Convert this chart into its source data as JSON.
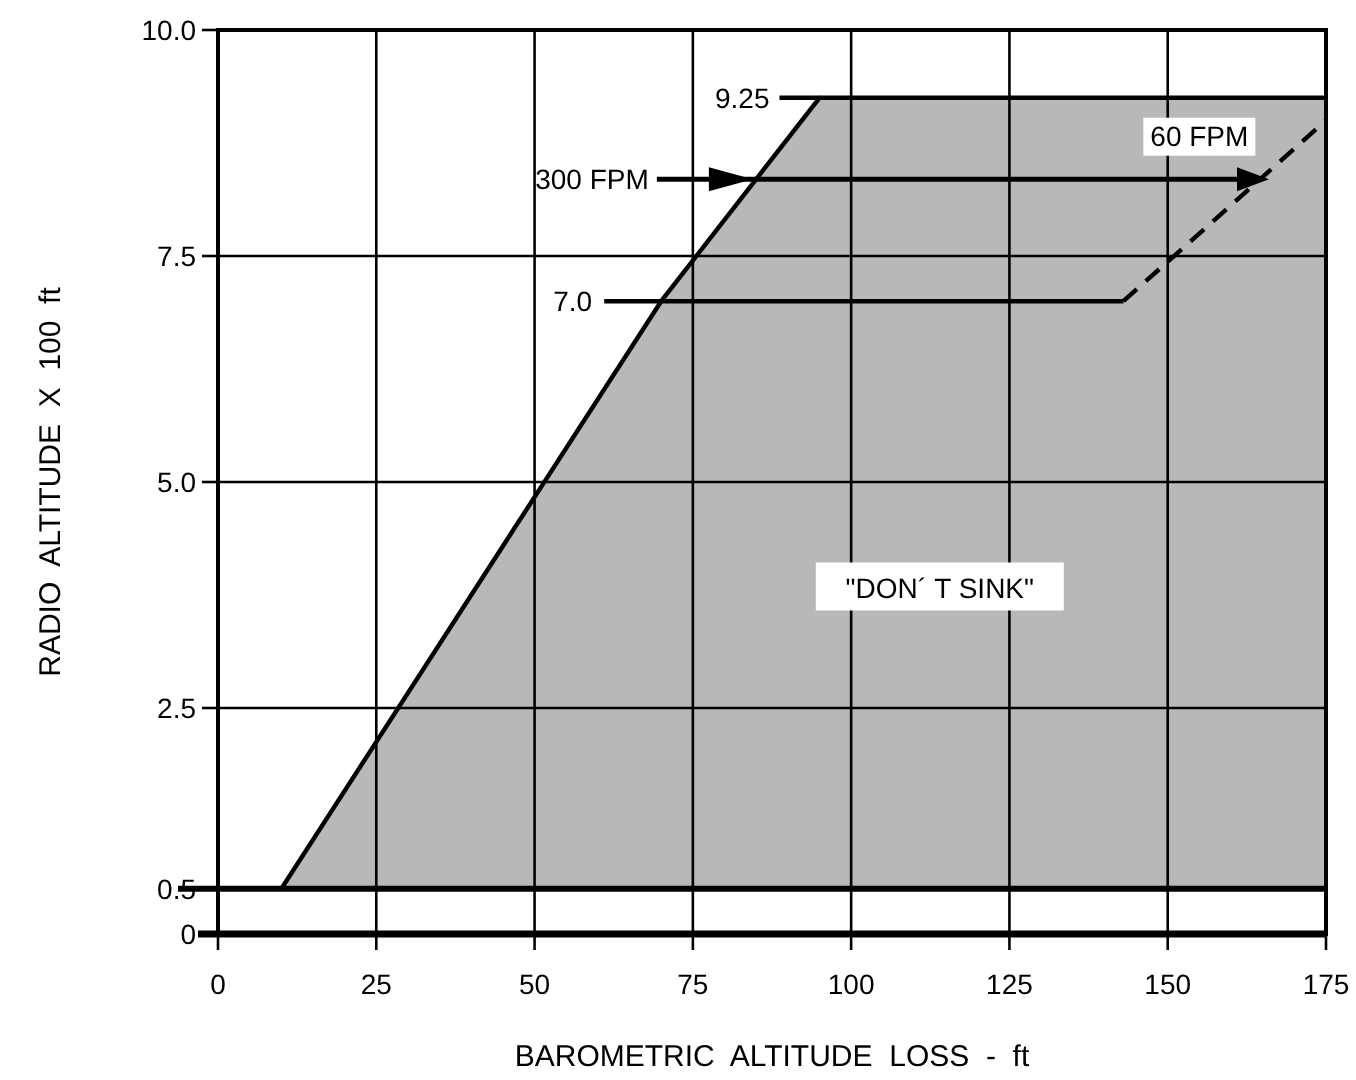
{
  "chart_data": {
    "type": "line",
    "xlabel": "BAROMETRIC  ALTITUDE  LOSS  -  ft",
    "ylabel": "RADIO  ALTITUDE  X  100  ft",
    "xlim": [
      0,
      175
    ],
    "xticks": [
      0,
      25,
      50,
      75,
      100,
      125,
      150,
      175
    ],
    "ylim": [
      0,
      10
    ],
    "yticks": [
      0,
      0.5,
      2.5,
      {
        "value": 5,
        "label": "5.0"
      },
      7.5,
      {
        "value": 10,
        "label": "10.0"
      }
    ],
    "grid": true,
    "series": [
      {
        "color": "#000000",
        "x": [
          10,
          70,
          95,
          175
        ],
        "values": [
          0.5,
          7.0,
          9.25,
          9.25
        ],
        "lower": [
          0.5,
          0.5,
          0.5,
          0.5
        ],
        "upper": [
          0.5,
          7.0,
          9.25,
          9.25
        ]
      },
      {
        "color": "#000000",
        "x": [
          61,
          143
        ],
        "values": [
          7.0,
          7.0
        ],
        "line_style": "solid"
      },
      {
        "color": "#000000",
        "x": [
          143,
          175
        ],
        "values": [
          7.0,
          9.0
        ],
        "line_style": "dashed"
      }
    ],
    "ref_lines": [
      {
        "axis": "y",
        "value": 0.5,
        "color": "#000000"
      }
    ],
    "annotations": [
      {
        "text": "9.25",
        "x": 95,
        "y": 9.25
      },
      {
        "text": "7.0",
        "x": 61,
        "y": 7.0
      },
      "300 FPM",
      "60 FPM",
      "\"DON´ T SINK\""
    ]
  }
}
